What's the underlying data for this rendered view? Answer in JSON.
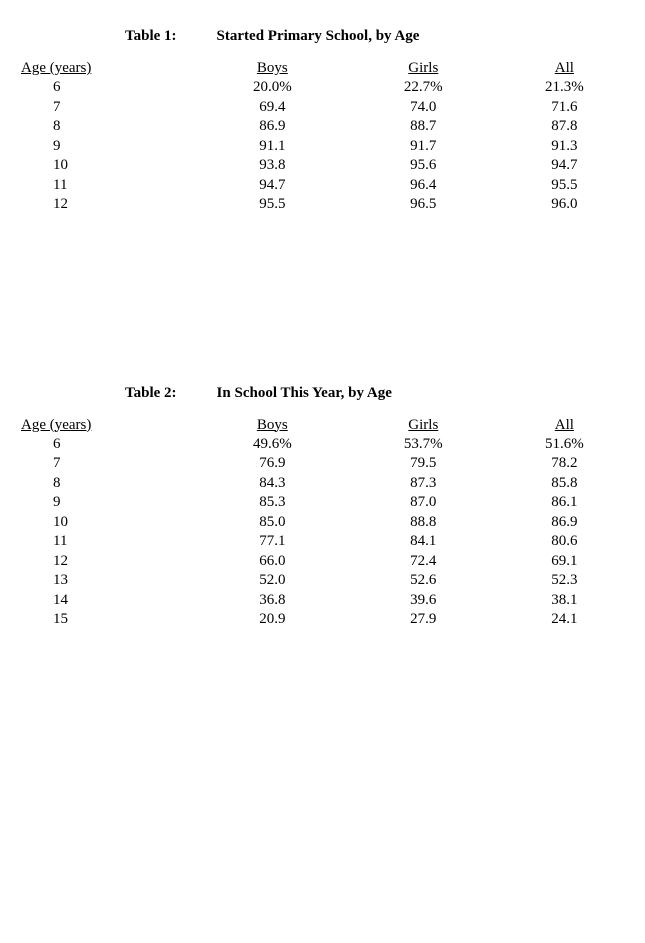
{
  "table1": {
    "type": "table",
    "label": "Table 1:",
    "title": "Started Primary School, by Age",
    "background_color": "#ffffff",
    "text_color": "#000000",
    "font_family": "Times New Roman",
    "title_fontsize": 15,
    "title_fontweight": "bold",
    "body_fontsize": 15,
    "columns": [
      "Age (years)",
      "Boys",
      "Girls",
      "All"
    ],
    "column_align": [
      "left",
      "center",
      "center",
      "center"
    ],
    "rows": [
      [
        "6",
        "20.0%",
        "22.7%",
        "21.3%"
      ],
      [
        "7",
        "69.4",
        "74.0",
        "71.6"
      ],
      [
        "8",
        "86.9",
        "88.7",
        "87.8"
      ],
      [
        "9",
        "91.1",
        "91.7",
        "91.3"
      ],
      [
        "10",
        "93.8",
        "95.6",
        "94.7"
      ],
      [
        "11",
        "94.7",
        "96.4",
        "95.5"
      ],
      [
        "12",
        "95.5",
        "96.5",
        "96.0"
      ]
    ]
  },
  "table2": {
    "type": "table",
    "label": "Table 2:",
    "title": "In School This Year, by Age",
    "background_color": "#ffffff",
    "text_color": "#000000",
    "font_family": "Times New Roman",
    "title_fontsize": 15,
    "title_fontweight": "bold",
    "body_fontsize": 15,
    "columns": [
      "Age (years)",
      "Boys",
      "Girls",
      "All"
    ],
    "column_align": [
      "left",
      "center",
      "center",
      "center"
    ],
    "rows": [
      [
        "6",
        "49.6%",
        "53.7%",
        "51.6%"
      ],
      [
        "7",
        "76.9",
        "79.5",
        "78.2"
      ],
      [
        "8",
        "84.3",
        "87.3",
        "85.8"
      ],
      [
        "9",
        "85.3",
        "87.0",
        "86.1"
      ],
      [
        "10",
        "85.0",
        "88.8",
        "86.9"
      ],
      [
        "11",
        "77.1",
        "84.1",
        "80.6"
      ],
      [
        "12",
        "66.0",
        "72.4",
        "69.1"
      ],
      [
        "13",
        "52.0",
        "52.6",
        "52.3"
      ],
      [
        "14",
        "36.8",
        "39.6",
        "38.1"
      ],
      [
        "15",
        "20.9",
        "27.9",
        "24.1"
      ]
    ]
  }
}
